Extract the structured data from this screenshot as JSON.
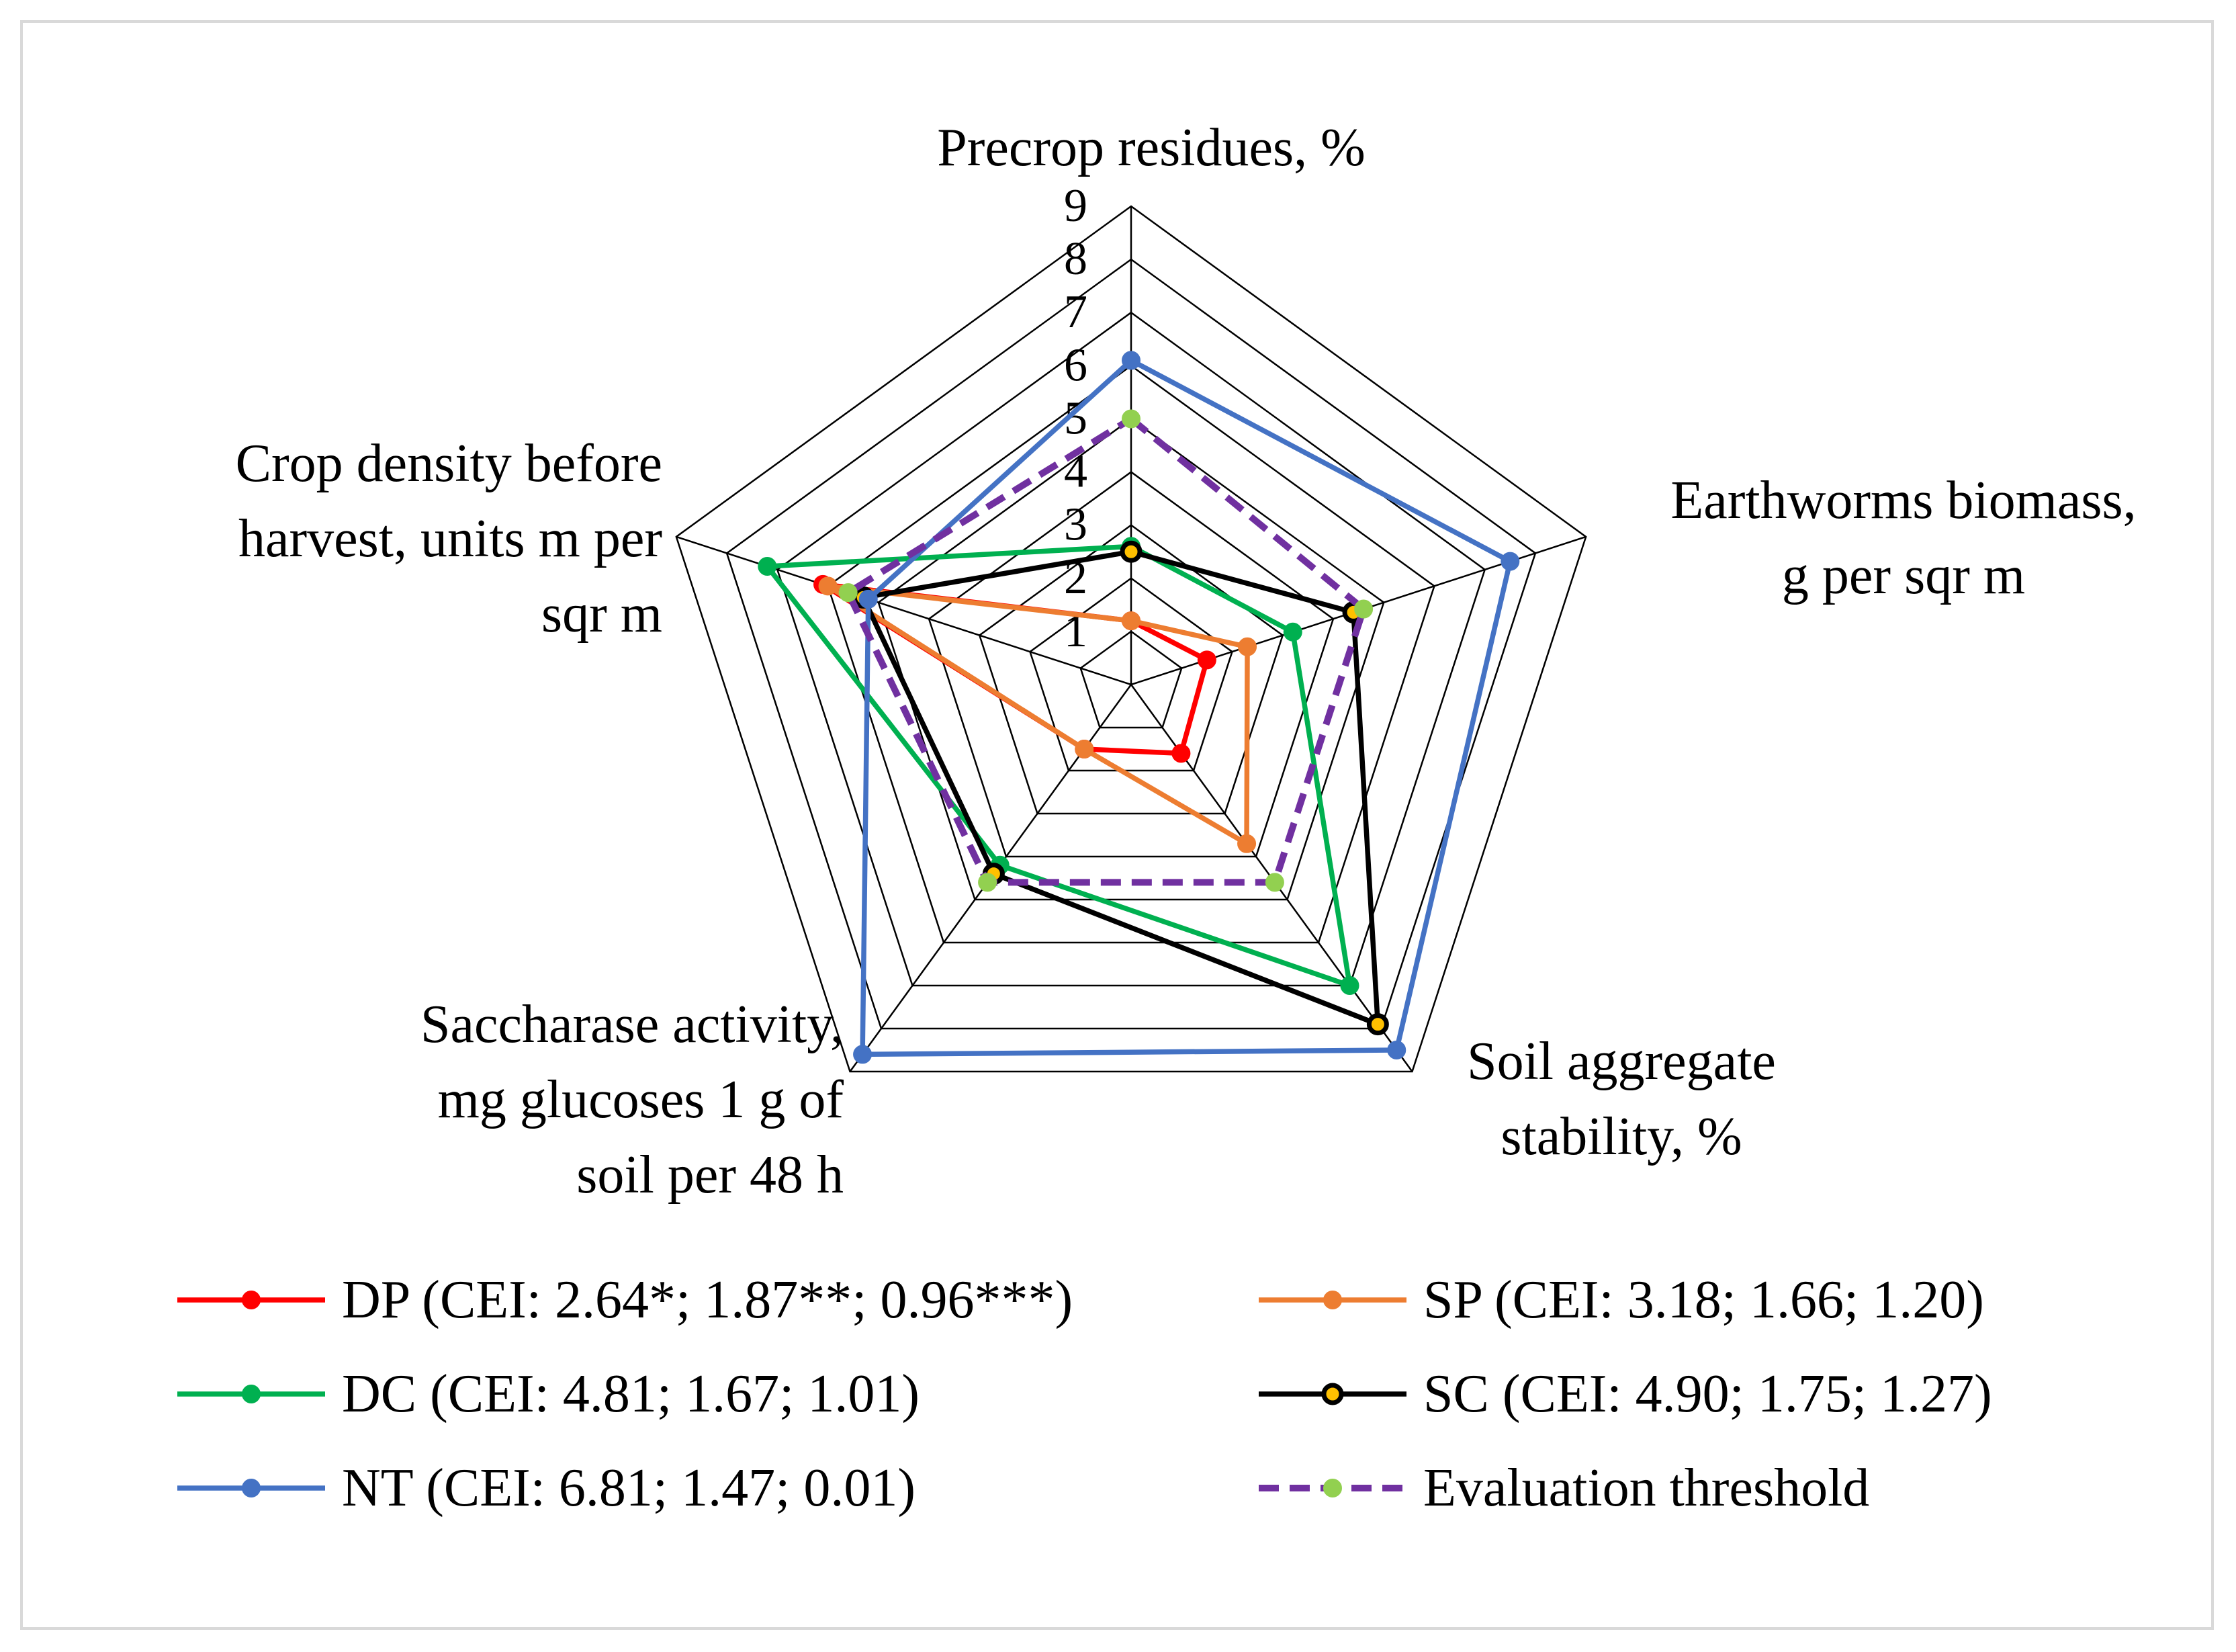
{
  "chart_data": {
    "type": "radar",
    "axes": [
      "Precrop residues, %",
      "Earthworms biomass, g per sqr m",
      "Soil aggregate stability, %",
      "Saccharase activity, mg glucoses 1 g of soil per 48 h",
      "Crop density before harvest, units m per sqr m"
    ],
    "axis_label_lines": [
      [
        "Precrop residues, %"
      ],
      [
        "Earthworms biomass,",
        "g per sqr m"
      ],
      [
        "Soil aggregate",
        "stability, %"
      ],
      [
        "Saccharase activity,",
        "mg glucoses 1 g of",
        "soil per 48 h"
      ],
      [
        "Crop density before",
        "harvest, units m per",
        "sqr m"
      ]
    ],
    "rlim": [
      0,
      9
    ],
    "ticks": [
      "1",
      "2",
      "3",
      "4",
      "5",
      "6",
      "7",
      "8",
      "9"
    ],
    "series": [
      {
        "name": "DP",
        "label": "DP (CEI: 2.64*; 1.87**; 0.96***)",
        "color": "#ff0000",
        "marker_fill": "#ff0000",
        "dashed": false,
        "values": [
          1.2,
          1.5,
          1.6,
          1.5,
          6.1
        ]
      },
      {
        "name": "SP",
        "label": "SP (CEI: 3.18; 1.66; 1.20)",
        "color": "#ed7d31",
        "marker_fill": "#ed7d31",
        "dashed": false,
        "values": [
          1.2,
          2.3,
          3.7,
          1.5,
          6.0
        ]
      },
      {
        "name": "DC",
        "label": "DC (CEI: 4.81; 1.67; 1.01)",
        "color": "#00b050",
        "marker_fill": "#00b050",
        "dashed": false,
        "values": [
          2.6,
          3.2,
          7.0,
          4.2,
          7.2
        ]
      },
      {
        "name": "SC",
        "label": "SC (CEI: 4.90; 1.75; 1.27)",
        "color": "#000000",
        "marker_fill": "#ffc000",
        "dashed": false,
        "values": [
          2.5,
          4.4,
          7.9,
          4.4,
          5.3
        ]
      },
      {
        "name": "NT",
        "label": "NT (CEI: 6.81; 1.47; 0.01)",
        "color": "#4472c4",
        "marker_fill": "#4472c4",
        "dashed": false,
        "values": [
          6.1,
          7.5,
          8.5,
          8.6,
          5.2
        ]
      },
      {
        "name": "Evaluation threshold",
        "label": "Evaluation threshold",
        "color": "#7030a0",
        "marker_fill": "#92d050",
        "dashed": true,
        "values": [
          5.0,
          4.6,
          4.6,
          4.6,
          5.6
        ]
      }
    ]
  }
}
